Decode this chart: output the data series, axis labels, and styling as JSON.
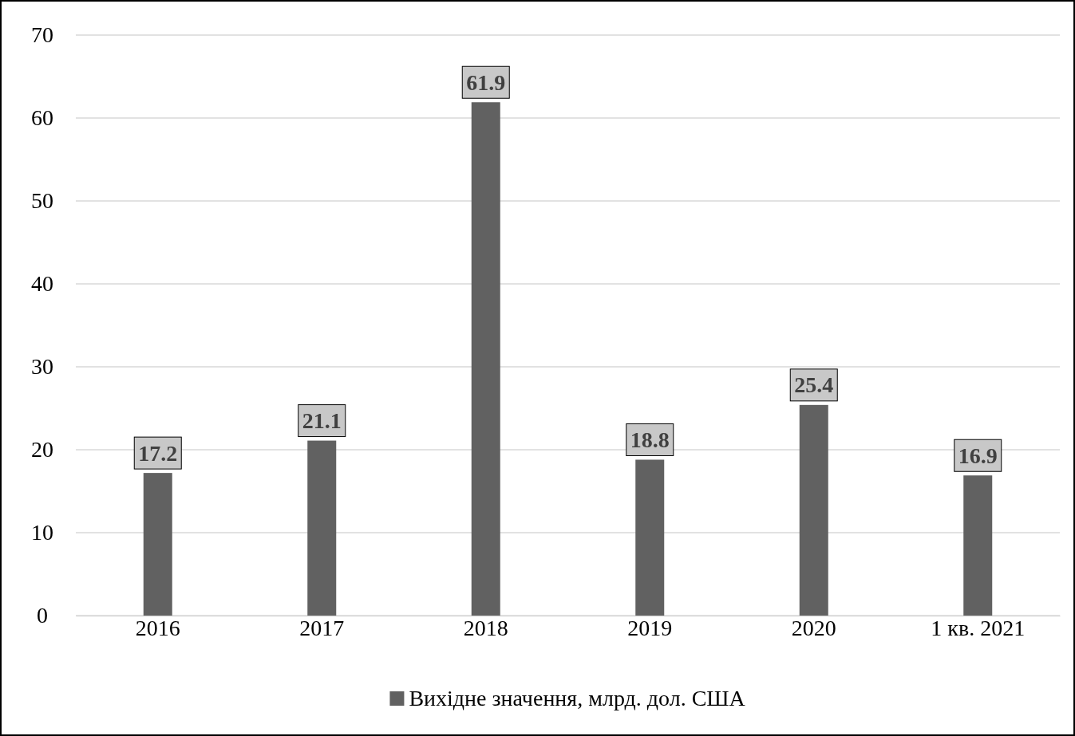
{
  "chart_data": {
    "type": "bar",
    "categories": [
      "2016",
      "2017",
      "2018",
      "2019",
      "2020",
      "1 кв. 2021"
    ],
    "series": [
      {
        "name": "Вихідне значення, млрд. дол. США",
        "color": "#616161",
        "values": [
          17.2,
          21.1,
          61.9,
          18.8,
          25.4,
          16.9
        ]
      }
    ],
    "ylim": [
      0,
      70
    ],
    "yticks": [
      0,
      10,
      20,
      30,
      40,
      50,
      60,
      70
    ],
    "grid": "y",
    "legend": "bottom",
    "data_labels": true
  }
}
